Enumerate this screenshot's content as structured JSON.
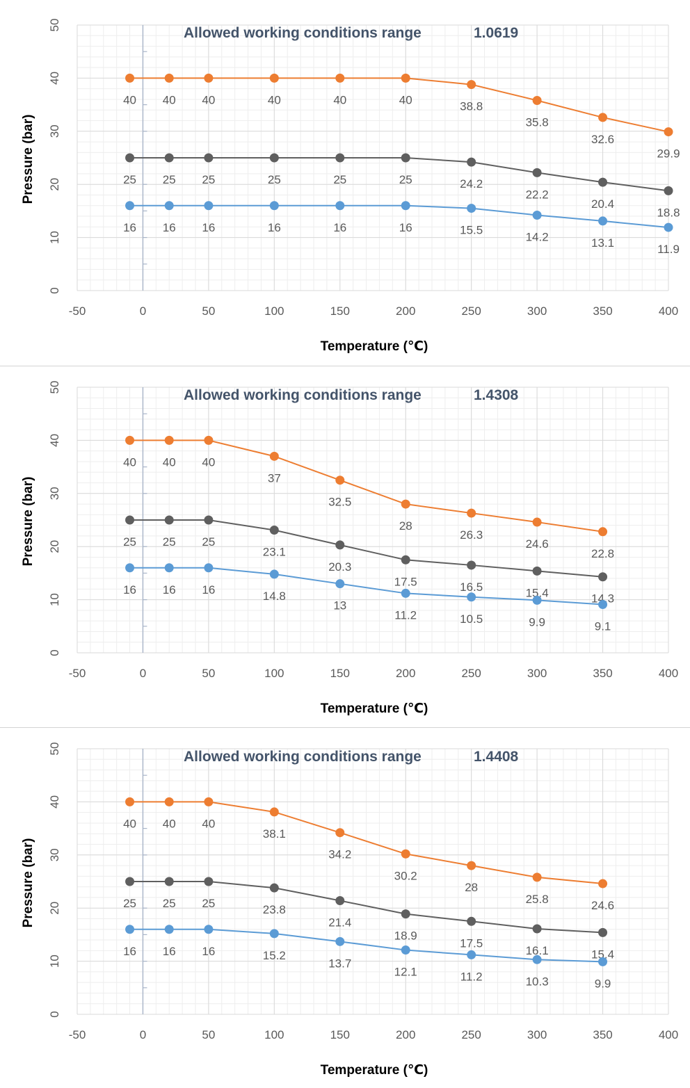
{
  "charts": [
    {
      "title": "Allowed working conditions range",
      "code": "1.0619",
      "xlabel": "Temperature (℃)",
      "ylabel": "Pressure (bar)"
    },
    {
      "title": "Allowed working conditions range",
      "code": "1.4308",
      "xlabel": "Temperature (℃)",
      "ylabel": "Pressure (bar)"
    },
    {
      "title": "Allowed working conditions range",
      "code": "1.4408",
      "xlabel": "Temperature (℃)",
      "ylabel": "Pressure (bar)"
    }
  ],
  "colors": {
    "orange": "#ed7d31",
    "gray": "#5f5f5f",
    "blue": "#5b9bd5",
    "grid": "#d9d9d9",
    "yaxis": "#a8b4c8"
  },
  "chart_data": [
    {
      "type": "line",
      "title": "Allowed working conditions range 1.0619",
      "xlabel": "Temperature (℃)",
      "ylabel": "Pressure (bar)",
      "xlim": [
        -50,
        400
      ],
      "ylim": [
        0,
        50
      ],
      "xticks": [
        -50,
        0,
        50,
        100,
        150,
        200,
        250,
        300,
        350,
        400
      ],
      "yticks": [
        0,
        10,
        20,
        30,
        40,
        50
      ],
      "grid": true,
      "x": [
        -10,
        20,
        50,
        100,
        150,
        200,
        250,
        300,
        350,
        400
      ],
      "series": [
        {
          "color": "#ed7d31",
          "values": [
            40,
            40,
            40,
            40,
            40,
            40,
            38.8,
            35.8,
            32.6,
            29.9
          ]
        },
        {
          "color": "#5f5f5f",
          "values": [
            25,
            25,
            25,
            25,
            25,
            25,
            24.2,
            22.2,
            20.4,
            18.8
          ]
        },
        {
          "color": "#5b9bd5",
          "values": [
            16,
            16,
            16,
            16,
            16,
            16,
            15.5,
            14.2,
            13.1,
            11.9
          ]
        }
      ]
    },
    {
      "type": "line",
      "title": "Allowed working conditions range 1.4308",
      "xlabel": "Temperature (℃)",
      "ylabel": "Pressure (bar)",
      "xlim": [
        -50,
        400
      ],
      "ylim": [
        0,
        50
      ],
      "xticks": [
        -50,
        0,
        50,
        100,
        150,
        200,
        250,
        300,
        350,
        400
      ],
      "yticks": [
        0,
        10,
        20,
        30,
        40,
        50
      ],
      "grid": true,
      "x": [
        -10,
        20,
        50,
        100,
        150,
        200,
        250,
        300,
        350
      ],
      "series": [
        {
          "color": "#ed7d31",
          "values": [
            40,
            40,
            40,
            37,
            32.5,
            28,
            26.3,
            24.6,
            22.8
          ]
        },
        {
          "color": "#5f5f5f",
          "values": [
            25,
            25,
            25,
            23.1,
            20.3,
            17.5,
            16.5,
            15.4,
            14.3
          ]
        },
        {
          "color": "#5b9bd5",
          "values": [
            16,
            16,
            16,
            14.8,
            13,
            11.2,
            10.5,
            9.9,
            9.1
          ]
        }
      ]
    },
    {
      "type": "line",
      "title": "Allowed working conditions range 1.4408",
      "xlabel": "Temperature (℃)",
      "ylabel": "Pressure (bar)",
      "xlim": [
        -50,
        400
      ],
      "ylim": [
        0,
        50
      ],
      "xticks": [
        -50,
        0,
        50,
        100,
        150,
        200,
        250,
        300,
        350,
        400
      ],
      "yticks": [
        0,
        10,
        20,
        30,
        40,
        50
      ],
      "grid": true,
      "x": [
        -10,
        20,
        50,
        100,
        150,
        200,
        250,
        300,
        350
      ],
      "series": [
        {
          "color": "#ed7d31",
          "values": [
            40,
            40,
            40,
            38.1,
            34.2,
            30.2,
            28,
            25.8,
            24.6
          ]
        },
        {
          "color": "#5f5f5f",
          "values": [
            25,
            25,
            25,
            23.8,
            21.4,
            18.9,
            17.5,
            16.1,
            15.4
          ]
        },
        {
          "color": "#5b9bd5",
          "values": [
            16,
            16,
            16,
            15.2,
            13.7,
            12.1,
            11.2,
            10.3,
            9.9
          ]
        }
      ]
    }
  ]
}
